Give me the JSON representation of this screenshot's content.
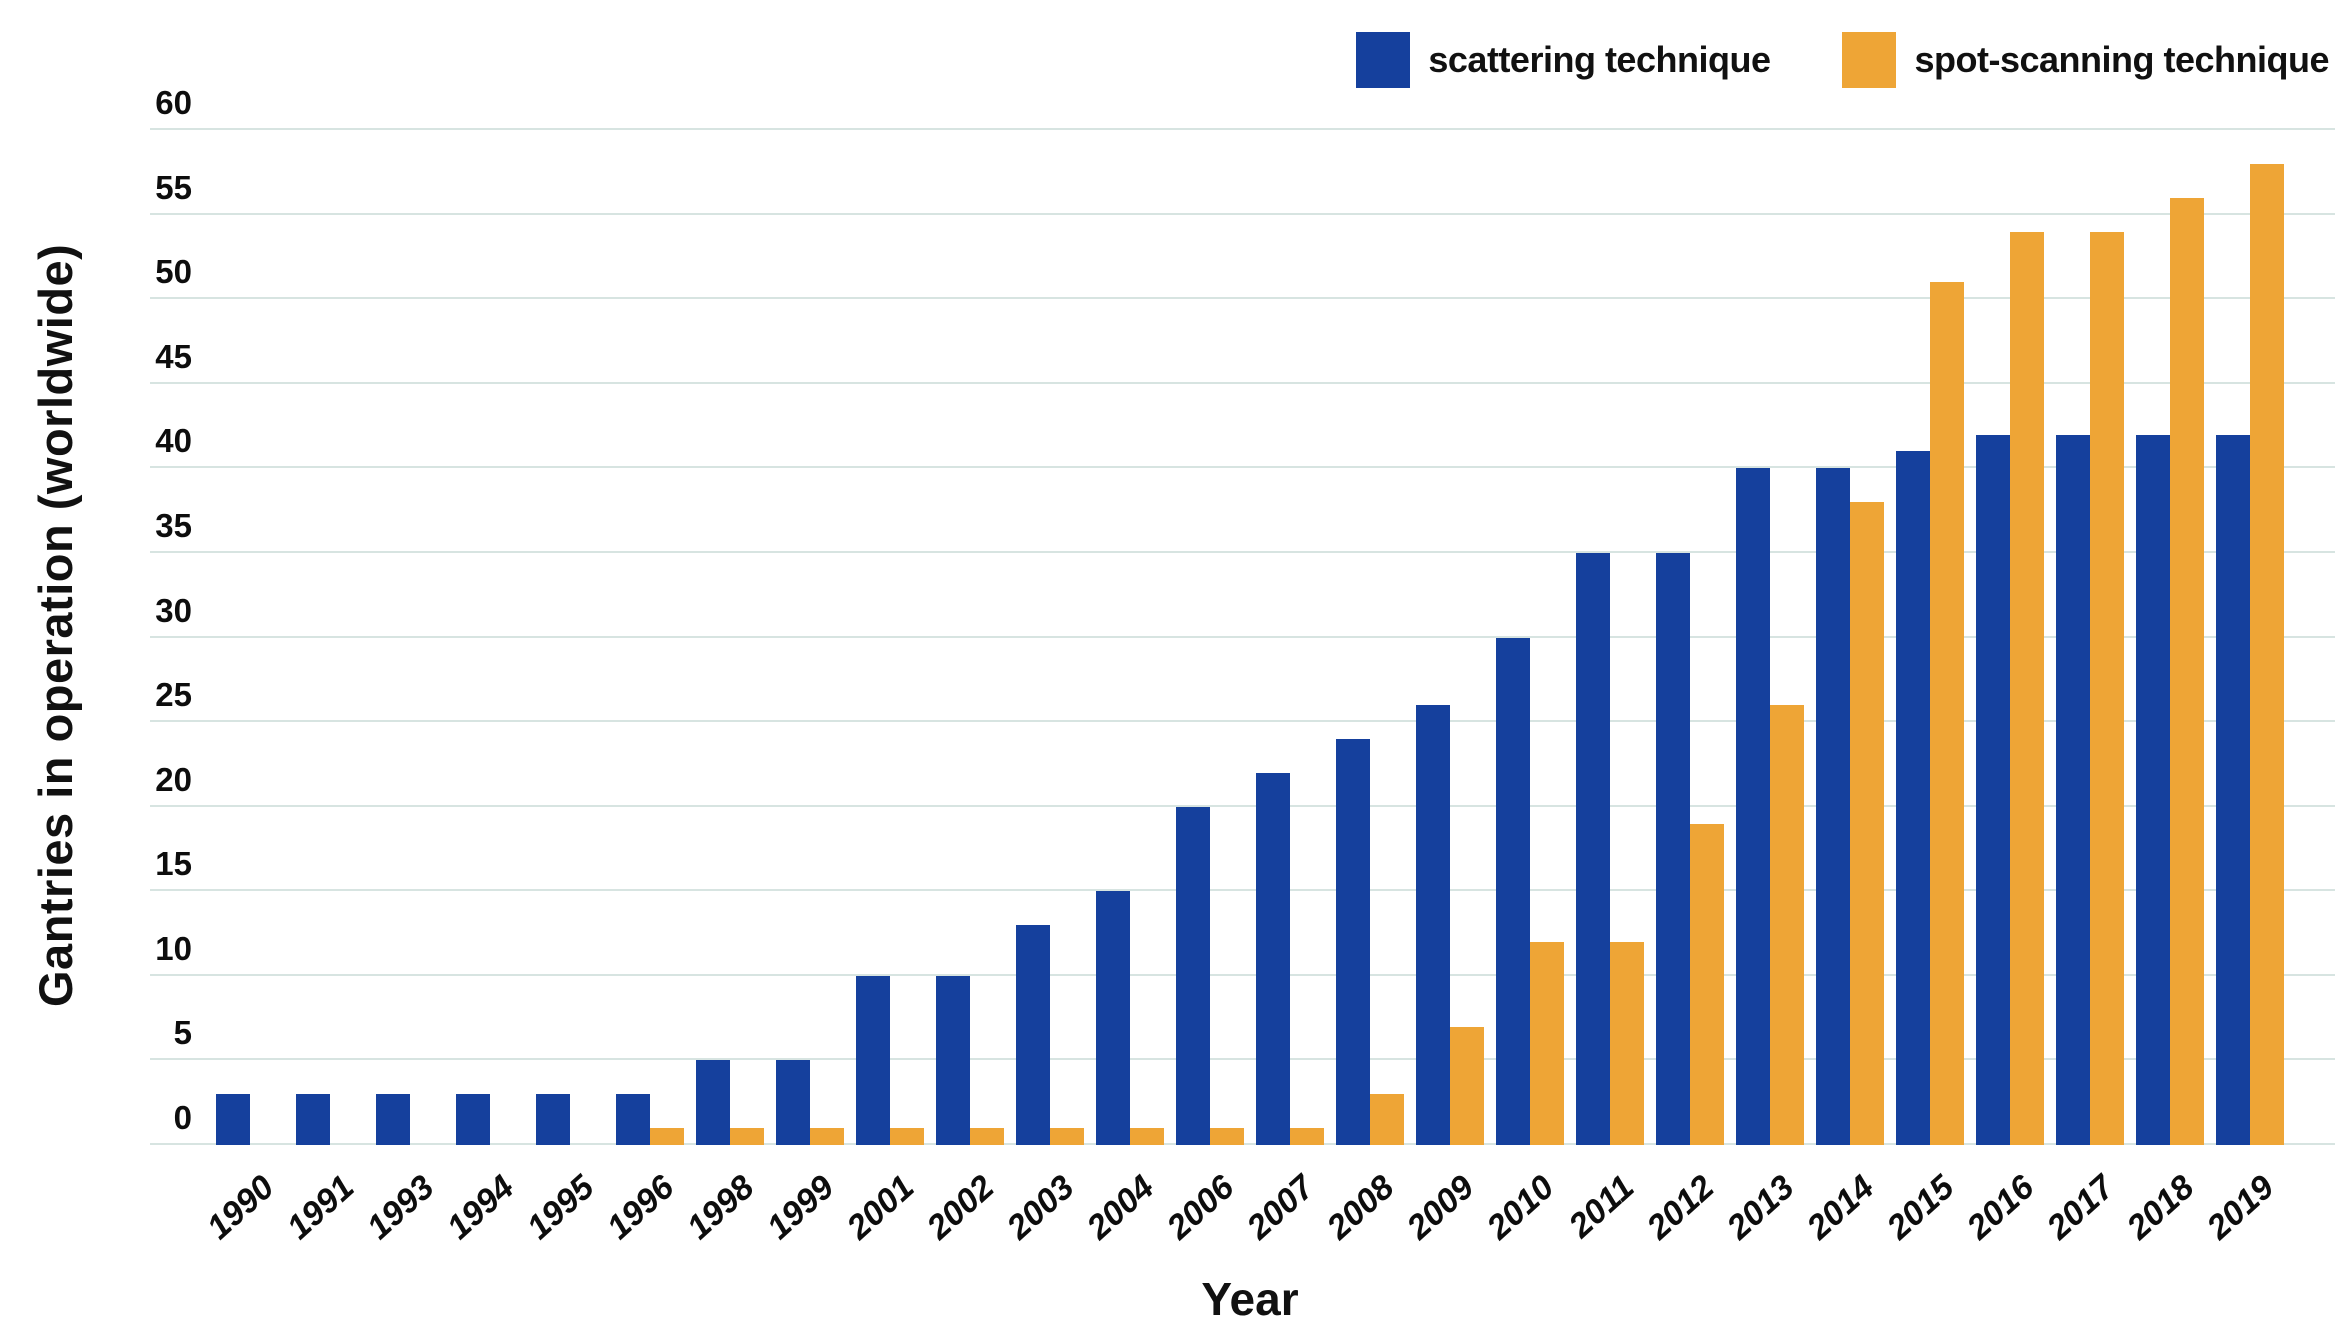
{
  "legend": {
    "items": [
      {
        "key": "scattering",
        "label": "scattering technique",
        "color": "#15409D"
      },
      {
        "key": "spot-scanning",
        "label": "spot-scanning technique",
        "color": "#EEA536"
      }
    ]
  },
  "colors": {
    "scattering": "#15409D",
    "spot_scanning": "#EEA536",
    "gridline": "#D7E4E1",
    "background": "#FFFFFF",
    "text": "#111111"
  },
  "chart_data": {
    "type": "bar",
    "title": "",
    "xlabel": "Year",
    "ylabel": "Gantries in operation (worldwide)",
    "ylim": [
      0,
      60
    ],
    "ytick_step": 5,
    "yticks": [
      0,
      5,
      10,
      15,
      20,
      25,
      30,
      35,
      40,
      45,
      50,
      55,
      60
    ],
    "grid": true,
    "legend_position": "top-right",
    "categories": [
      "1990",
      "1991",
      "1993",
      "1994",
      "1995",
      "1996",
      "1998",
      "1999",
      "2001",
      "2002",
      "2003",
      "2004",
      "2006",
      "2007",
      "2008",
      "2009",
      "2010",
      "2011",
      "2012",
      "2013",
      "2014",
      "2015",
      "2016",
      "2017",
      "2018",
      "2019"
    ],
    "series": [
      {
        "key": "scattering",
        "name": "scattering technique",
        "color": "#15409D",
        "values": [
          3,
          3,
          3,
          3,
          3,
          3,
          5,
          5,
          10,
          10,
          13,
          15,
          20,
          22,
          24,
          26,
          30,
          35,
          35,
          40,
          40,
          41,
          42,
          42,
          42,
          42
        ]
      },
      {
        "key": "spot-scanning",
        "name": "spot-scanning technique",
        "color": "#EEA536",
        "values": [
          0,
          0,
          0,
          0,
          0,
          1,
          1,
          1,
          1,
          1,
          1,
          1,
          1,
          1,
          3,
          7,
          12,
          12,
          19,
          26,
          38,
          51,
          54,
          54,
          56,
          58
        ]
      }
    ]
  }
}
